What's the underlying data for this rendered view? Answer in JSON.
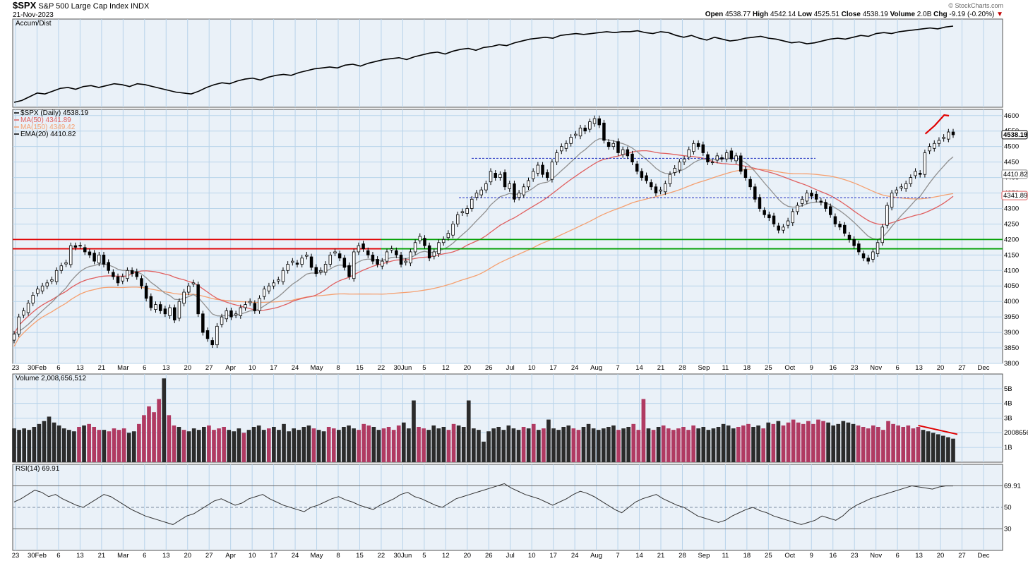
{
  "header": {
    "symbol": "$SPX",
    "name": "S&P 500 Large Cap Index",
    "exchange": "INDX",
    "date": "21-Nov-2023",
    "brand": "© StockCharts.com",
    "open_label": "Open",
    "open": "4538.77",
    "high_label": "High",
    "high": "4542.14",
    "low_label": "Low",
    "low": "4525.51",
    "close_label": "Close",
    "close": "4538.19",
    "volume_label": "Volume",
    "volume": "2.0B",
    "chg_label": "Chg",
    "chg": "-9.19 (-0.20%)"
  },
  "colors": {
    "up_volume": "#2b2b2b",
    "down_volume": "#b03a62",
    "ma50": "#e06060",
    "ma150": "#f5a070",
    "ema20": "#909090",
    "resistance": "#e00000",
    "support": "#00a000",
    "trendline": "#e00000",
    "dashed": "#2030c0",
    "panel_bg": "#eaf1f8",
    "grid": "#b8d4ea"
  },
  "chart_data": [
    {
      "type": "line",
      "panel": "accum_dist",
      "legend": "Accum/Dist",
      "values": [
        6,
        8,
        12,
        16,
        15,
        18,
        21,
        22,
        20,
        23,
        24,
        22,
        24,
        26,
        25,
        23,
        26,
        25,
        23,
        21,
        19,
        17,
        16,
        15,
        18,
        22,
        25,
        27,
        26,
        29,
        31,
        32,
        30,
        33,
        35,
        36,
        35,
        38,
        40,
        42,
        43,
        44,
        43,
        46,
        47,
        45,
        48,
        50,
        52,
        53,
        54,
        52,
        55,
        57,
        59,
        60,
        58,
        61,
        63,
        64,
        62,
        65,
        66,
        68,
        67,
        70,
        72,
        74,
        75,
        76,
        75,
        78,
        79,
        80,
        79,
        80,
        81,
        82,
        81,
        82,
        82,
        83,
        81,
        80,
        82,
        81,
        78,
        76,
        78,
        75,
        73,
        76,
        74,
        72,
        73,
        75,
        76,
        77,
        75,
        74,
        72,
        70,
        71,
        69,
        70,
        72,
        74,
        75,
        74,
        76,
        78,
        77,
        80,
        81,
        80,
        82,
        83,
        84,
        85,
        86,
        85,
        87,
        88
      ]
    },
    {
      "type": "candlestick",
      "panel": "price",
      "legend": [
        "$SPX (Daily) 4538.19",
        "MA(50) 4341.89",
        "MA(150) 4349.42",
        "EMA(20) 4410.82"
      ],
      "ylim": [
        3800,
        4620
      ],
      "y_ticks": [
        3800,
        3850,
        3900,
        3950,
        4000,
        4050,
        4100,
        4150,
        4200,
        4250,
        4300,
        4350,
        4400,
        4450,
        4500,
        4550,
        4600
      ],
      "x_tick_labels": [
        "23",
        "30Feb",
        "6",
        "13",
        "21",
        "Mar",
        "6",
        "13",
        "20",
        "27",
        "Apr",
        "10",
        "17",
        "24",
        "May",
        "8",
        "15",
        "22",
        "30Jun",
        "5",
        "12",
        "20",
        "26",
        "Jul",
        "10",
        "17",
        "24",
        "Aug",
        "7",
        "14",
        "21",
        "28",
        "Sep",
        "11",
        "18",
        "25",
        "Oct",
        "9",
        "16",
        "23",
        "Nov",
        "6",
        "13",
        "20",
        "27",
        "Dec"
      ],
      "close": [
        3895,
        3950,
        3970,
        3995,
        4020,
        4040,
        4050,
        4060,
        4070,
        4100,
        4115,
        4125,
        4180,
        4175,
        4180,
        4160,
        4150,
        4130,
        4150,
        4120,
        4100,
        4080,
        4060,
        4080,
        4100,
        4090,
        4080,
        4050,
        4010,
        3980,
        3990,
        3970,
        3960,
        3980,
        3940,
        4000,
        4030,
        4050,
        4060,
        3960,
        3900,
        3880,
        3860,
        3920,
        3950,
        3970,
        3950,
        3960,
        3980,
        3990,
        4000,
        3970,
        4010,
        4040,
        4050,
        4060,
        4070,
        4100,
        4120,
        4130,
        4120,
        4140,
        4150,
        4110,
        4090,
        4100,
        4120,
        4150,
        4160,
        4140,
        4110,
        4080,
        4160,
        4180,
        4170,
        4150,
        4130,
        4120,
        4130,
        4160,
        4170,
        4150,
        4120,
        4130,
        4160,
        4190,
        4210,
        4180,
        4140,
        4160,
        4190,
        4200,
        4220,
        4250,
        4280,
        4290,
        4300,
        4330,
        4350,
        4360,
        4380,
        4420,
        4400,
        4410,
        4370,
        4380,
        4330,
        4350,
        4370,
        4390,
        4420,
        4440,
        4410,
        4400,
        4450,
        4480,
        4500,
        4510,
        4530,
        4540,
        4560,
        4550,
        4580,
        4590,
        4570,
        4520,
        4500,
        4510,
        4480,
        4490,
        4470,
        4450,
        4420,
        4400,
        4390,
        4370,
        4350,
        4360,
        4380,
        4410,
        4430,
        4450,
        4460,
        4490,
        4510,
        4500,
        4480,
        4450,
        4450,
        4470,
        4460,
        4480,
        4460,
        4470,
        4420,
        4400,
        4370,
        4330,
        4300,
        4280,
        4270,
        4250,
        4230,
        4240,
        4260,
        4290,
        4310,
        4330,
        4350,
        4340,
        4330,
        4320,
        4300,
        4280,
        4250,
        4240,
        4220,
        4200,
        4180,
        4160,
        4140,
        4130,
        4160,
        4190,
        4240,
        4310,
        4350,
        4360,
        4370,
        4380,
        4400,
        4420,
        4410,
        4480,
        4500,
        4510,
        4520,
        4530,
        4547,
        4538
      ]
    },
    {
      "type": "bar",
      "panel": "volume",
      "legend": "Volume 2,008,656,512",
      "ylim": [
        0,
        6000000000
      ],
      "y_tick_labels": [
        "1B",
        "2008656",
        "3B",
        "4B",
        "5B"
      ],
      "values_billions": [
        2.3,
        2.2,
        2.3,
        2.2,
        2.4,
        2.6,
        2.8,
        3.1,
        2.7,
        2.5,
        2.3,
        2.2,
        2.1,
        2.4,
        2.5,
        2.6,
        2.4,
        2.2,
        2.2,
        2.1,
        2.3,
        2.2,
        2.3,
        2.0,
        2.1,
        2.6,
        3.2,
        3.8,
        3.4,
        4.3,
        5.7,
        3.2,
        2.5,
        2.4,
        2.2,
        2.1,
        2.3,
        2.2,
        2.4,
        2.5,
        2.2,
        2.3,
        2.4,
        2.2,
        2.1,
        2.3,
        2.0,
        2.2,
        2.4,
        2.5,
        2.2,
        2.3,
        2.4,
        2.2,
        2.6,
        2.1,
        2.3,
        2.2,
        2.4,
        2.5,
        2.3,
        2.2,
        2.1,
        2.4,
        2.3,
        2.2,
        2.4,
        2.5,
        2.3,
        2.2,
        2.6,
        2.5,
        2.4,
        2.2,
        2.3,
        2.4,
        2.2,
        2.5,
        2.7,
        2.3,
        4.2,
        2.4,
        2.3,
        2.2,
        2.5,
        2.3,
        2.4,
        2.2,
        2.6,
        2.5,
        2.4,
        4.2,
        2.3,
        2.2,
        1.4,
        2.1,
        2.3,
        2.4,
        2.2,
        2.5,
        2.3,
        2.2,
        2.4,
        2.3,
        2.6,
        2.2,
        2.3,
        2.9,
        2.3,
        2.2,
        2.4,
        2.5,
        2.3,
        2.2,
        2.4,
        2.6,
        2.3,
        2.2,
        2.3,
        2.4,
        2.5,
        2.2,
        2.3,
        2.4,
        2.6,
        2.2,
        4.3,
        2.3,
        2.2,
        2.4,
        2.5,
        2.3,
        2.2,
        2.3,
        2.4,
        2.2,
        2.5,
        2.3,
        2.4,
        2.2,
        2.3,
        2.4,
        2.6,
        2.5,
        2.3,
        2.4,
        2.5,
        2.6,
        2.4,
        2.5,
        2.3,
        2.7,
        2.6,
        2.8,
        2.5,
        2.7,
        2.9,
        2.7,
        2.6,
        2.8,
        2.6,
        2.9,
        2.8,
        2.7,
        2.5,
        2.6,
        2.8,
        2.7,
        2.6,
        2.5,
        2.4,
        2.3,
        2.5,
        2.4,
        2.2,
        2.8,
        2.6,
        2.5,
        2.4,
        2.5,
        2.3,
        2.4,
        2.2,
        2.1,
        2.0,
        1.9,
        1.8,
        1.7,
        1.6
      ],
      "up_down": "alternating per candle color"
    },
    {
      "type": "line",
      "panel": "rsi",
      "legend": "RSI(14) 69.91",
      "ylim": [
        0,
        100
      ],
      "y_ticks": [
        30,
        50,
        70
      ],
      "y_tick_labels": [
        "30",
        "50",
        "69.91"
      ],
      "values": [
        55,
        58,
        62,
        66,
        64,
        60,
        62,
        58,
        55,
        52,
        50,
        54,
        58,
        62,
        60,
        56,
        52,
        48,
        45,
        42,
        40,
        38,
        36,
        34,
        38,
        42,
        44,
        48,
        52,
        56,
        58,
        55,
        52,
        54,
        58,
        60,
        62,
        58,
        55,
        52,
        50,
        48,
        46,
        50,
        52,
        55,
        58,
        60,
        57,
        55,
        52,
        50,
        48,
        52,
        55,
        58,
        62,
        64,
        60,
        58,
        55,
        52,
        50,
        54,
        58,
        60,
        62,
        64,
        66,
        68,
        70,
        72,
        68,
        65,
        62,
        60,
        58,
        55,
        52,
        55,
        58,
        62,
        65,
        63,
        60,
        56,
        52,
        48,
        45,
        50,
        55,
        58,
        60,
        62,
        58,
        55,
        52,
        50,
        46,
        42,
        40,
        38,
        36,
        38,
        42,
        45,
        48,
        50,
        47,
        45,
        42,
        40,
        38,
        36,
        34,
        36,
        38,
        42,
        40,
        38,
        42,
        48,
        52,
        55,
        58,
        60,
        62,
        64,
        66,
        68,
        70,
        69,
        68,
        67,
        69,
        70,
        69.91
      ]
    }
  ]
}
